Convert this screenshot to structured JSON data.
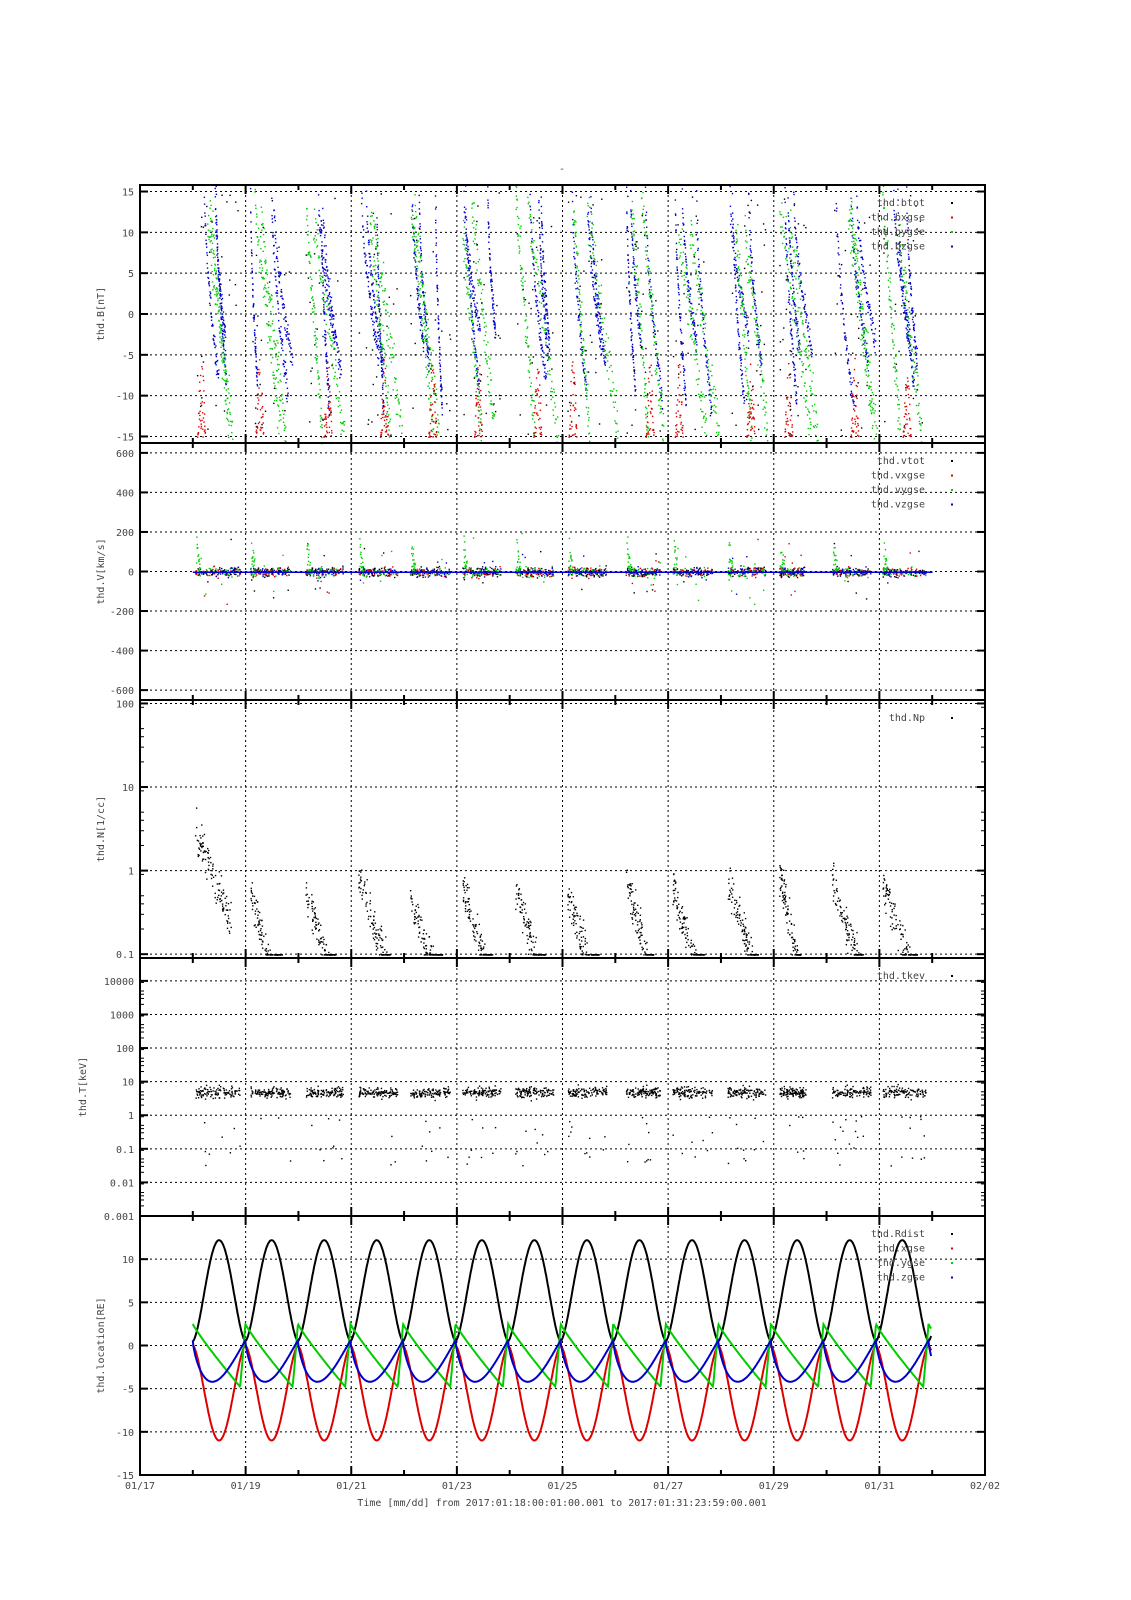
{
  "title": "-",
  "xlabel": "Time [mm/dd]  from 2017:01:18:00:01:00.001  to  2017:01:31:23:59:00.001",
  "x_ticks": [
    "01/17",
    "01/19",
    "01/21",
    "01/23",
    "01/25",
    "01/27",
    "01/29",
    "01/31",
    "02/02"
  ],
  "x_range_days_from_0117": [
    0,
    16
  ],
  "colors": {
    "black": "#000000",
    "red": "#dd0000",
    "green": "#00cc00",
    "blue": "#0000cc"
  },
  "chart_data": [
    {
      "type": "scatter",
      "ylabel": "thd.B[nT]",
      "ylim": [
        -15.8,
        15.8
      ],
      "yticks": [
        "15",
        "10",
        "5",
        "0",
        "-5",
        "-10",
        "-15"
      ],
      "ytick_values": [
        15,
        10,
        5,
        0,
        -5,
        -10,
        -15
      ],
      "legend": [
        "thd.btot",
        "thd.bxgse",
        "thd.bygse",
        "thd.bzgse"
      ],
      "legend_placement": "top-right",
      "grid": true
    },
    {
      "type": "scatter",
      "ylabel": "thd.V[km/s]",
      "ylim": [
        -650,
        650
      ],
      "yticks": [
        "600",
        "400",
        "200",
        "0",
        "-200",
        "-400",
        "-600"
      ],
      "ytick_values": [
        600,
        400,
        200,
        0,
        -200,
        -400,
        -600
      ],
      "legend": [
        "thd.vtot",
        "thd.vxgse",
        "thd.vygse",
        "thd.vzgse"
      ],
      "legend_placement": "top-right",
      "grid": true
    },
    {
      "type": "scatter",
      "ylabel": "thd.N[1/cc]",
      "yscale": "log",
      "ylim": [
        0.09,
        110
      ],
      "yticks": [
        "100",
        "10",
        "1",
        "0.1"
      ],
      "ytick_values": [
        100,
        10,
        1,
        0.1
      ],
      "legend": [
        "thd.Np"
      ],
      "legend_placement": "top-right",
      "grid": true
    },
    {
      "type": "scatter",
      "ylabel": "thd.T[keV]",
      "yscale": "log",
      "ylim": [
        0.001,
        48000
      ],
      "yticks": [
        "10000",
        "1000",
        "100",
        "10",
        "1",
        "0.1",
        "0.01",
        "0.001"
      ],
      "ytick_values": [
        10000,
        1000,
        100,
        10,
        1,
        0.1,
        0.01,
        0.001
      ],
      "legend": [
        "thd.tkev"
      ],
      "legend_placement": "top-right",
      "grid": true
    },
    {
      "type": "line",
      "ylabel": "thd.location[RE]",
      "ylim": [
        -15,
        15
      ],
      "yticks": [
        "10",
        "5",
        "0",
        "-5",
        "-10",
        "-15"
      ],
      "ytick_values": [
        10,
        5,
        0,
        -5,
        -10,
        -15
      ],
      "legend": [
        "thd.Rdist",
        "thd.xgse",
        "thd.ygse",
        "thd.zgse"
      ],
      "legend_placement": "top-right",
      "grid": true,
      "orbit": {
        "start_day": 1.0,
        "end_day": 14.98,
        "period_days": 0.995,
        "first_perigee_day": 1.0,
        "rdist_apogee": 12.2,
        "rdist_perigee": 0.5,
        "xgse_apogee": -11.0,
        "ygse_range": [
          2.5,
          -5.5
        ],
        "zgse_range": [
          0.6,
          -4.2
        ]
      }
    }
  ],
  "data_segments_days": [
    [
      1.04,
      1.89
    ],
    [
      2.08,
      2.84
    ],
    [
      3.13,
      3.84
    ],
    [
      4.13,
      4.87
    ],
    [
      5.11,
      5.87
    ],
    [
      6.1,
      6.82
    ],
    [
      7.1,
      7.82
    ],
    [
      8.09,
      8.83
    ],
    [
      9.19,
      9.85
    ],
    [
      10.08,
      10.83
    ],
    [
      11.12,
      11.84
    ],
    [
      12.1,
      12.6
    ],
    [
      13.1,
      13.83
    ],
    [
      14.05,
      14.87
    ]
  ]
}
